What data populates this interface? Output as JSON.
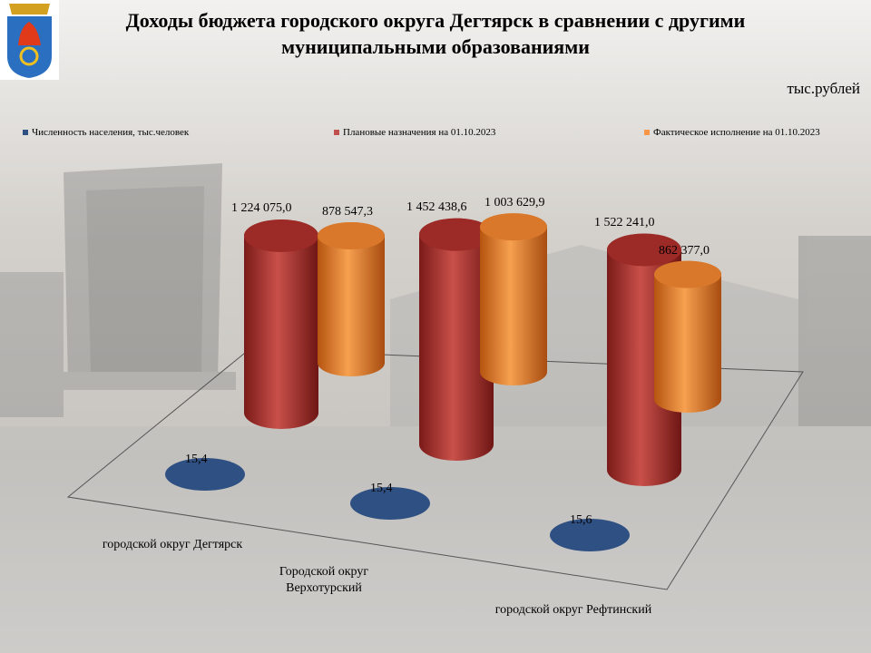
{
  "chart_data": {
    "type": "cylinder",
    "title": "Доходы бюджета городского округа Дегтярск в сравнении с другими муниципальными образованиями",
    "unit_note": "тыс.рублей",
    "categories": [
      "городской округ  Дегтярск",
      "Городской округ Верхотурский",
      "городской округ  Рефтинский"
    ],
    "series": [
      {
        "name": "Численность населения, тыс.человек",
        "color": "#2f5082",
        "values": [
          15.4,
          15.4,
          15.6
        ],
        "value_labels": [
          "15,4",
          "15,4",
          "15,6"
        ]
      },
      {
        "name": "Плановые назначения на 01.10.2023",
        "color": "#c0504d",
        "values": [
          1224075.0,
          1452438.6,
          1522241.0
        ],
        "value_labels": [
          "1 224 075,0",
          "1 452 438,6",
          "1 522 241,0"
        ]
      },
      {
        "name": "Фактическое исполнение на 01.10.2023",
        "color": "#f79646",
        "values": [
          878547.3,
          1003629.9,
          862377.0
        ],
        "value_labels": [
          "878 547,3",
          "1 003 629,9",
          "862 377,0"
        ]
      }
    ]
  }
}
